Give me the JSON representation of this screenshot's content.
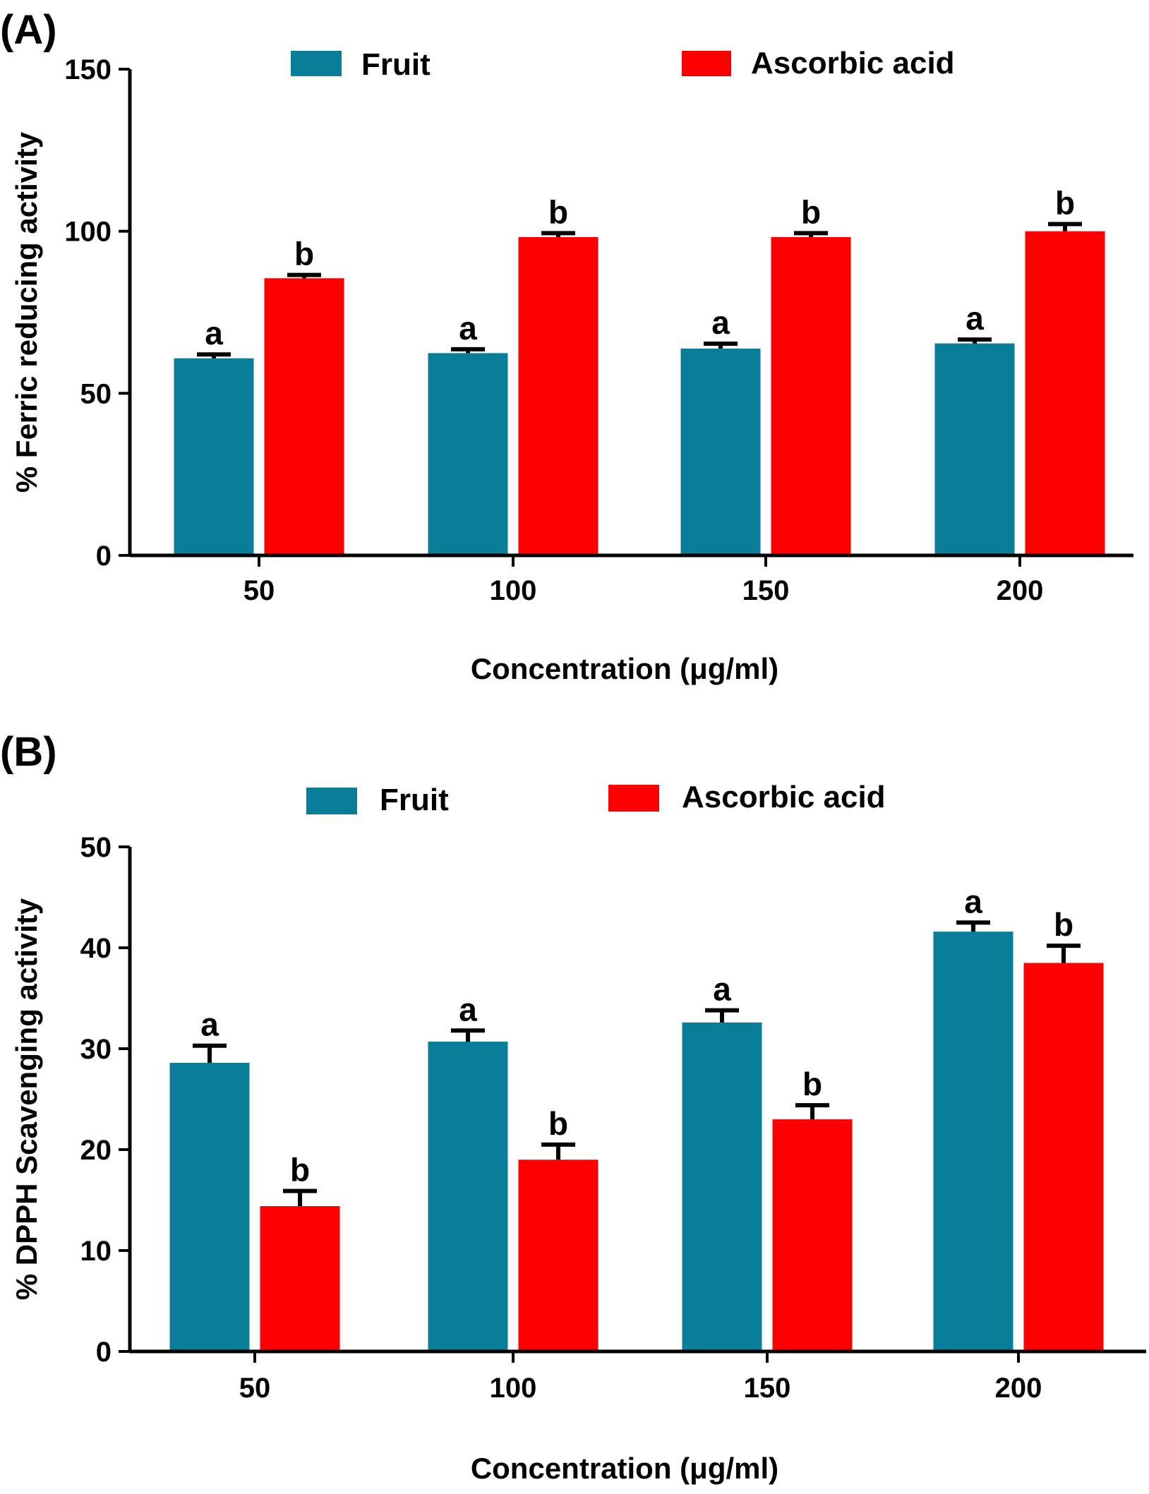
{
  "colors": {
    "fruit": "#0a7e99",
    "ascorbic": "#ff0000",
    "axis": "#000000"
  },
  "chart_data": [
    {
      "type": "bar",
      "panel_label": "(A)",
      "categories": [
        "50",
        "100",
        "150",
        "200"
      ],
      "series": [
        {
          "name": "Fruit",
          "color": "#0a7e99",
          "values": [
            60.8,
            62.4,
            63.8,
            65.4
          ],
          "errors": [
            1.2,
            1.2,
            1.5,
            1.2
          ],
          "letters": [
            "a",
            "a",
            "a",
            "a"
          ]
        },
        {
          "name": "Ascorbic acid",
          "color": "#ff0000",
          "values": [
            85.5,
            98.2,
            98.2,
            100.0
          ],
          "errors": [
            1.0,
            1.2,
            1.2,
            2.2
          ],
          "letters": [
            "b",
            "b",
            "b",
            "b"
          ]
        }
      ],
      "xlabel": "Concentration (μg/ml)",
      "ylabel": "% Ferric reducing activity",
      "ylim": [
        0,
        150
      ],
      "yticks": [
        "0",
        "50",
        "100",
        "150"
      ],
      "grid": false,
      "legend": "top"
    },
    {
      "type": "bar",
      "panel_label": "(B)",
      "categories": [
        "50",
        "100",
        "150",
        "200"
      ],
      "series": [
        {
          "name": "Fruit",
          "color": "#0a7e99",
          "values": [
            28.6,
            30.7,
            32.6,
            41.6
          ],
          "errors": [
            1.7,
            1.1,
            1.2,
            0.9
          ],
          "letters": [
            "a",
            "a",
            "a",
            "a"
          ]
        },
        {
          "name": "Ascorbic acid",
          "color": "#ff0000",
          "values": [
            14.4,
            19.0,
            23.0,
            38.5
          ],
          "errors": [
            1.5,
            1.5,
            1.4,
            1.7
          ],
          "letters": [
            "b",
            "b",
            "b",
            "b"
          ]
        }
      ],
      "xlabel": "Concentration (μg/ml)",
      "ylabel": "% DPPH Scavenging activity",
      "ylim": [
        0,
        50
      ],
      "yticks": [
        "0",
        "10",
        "20",
        "30",
        "40",
        "50"
      ],
      "grid": false,
      "legend": "top"
    }
  ]
}
